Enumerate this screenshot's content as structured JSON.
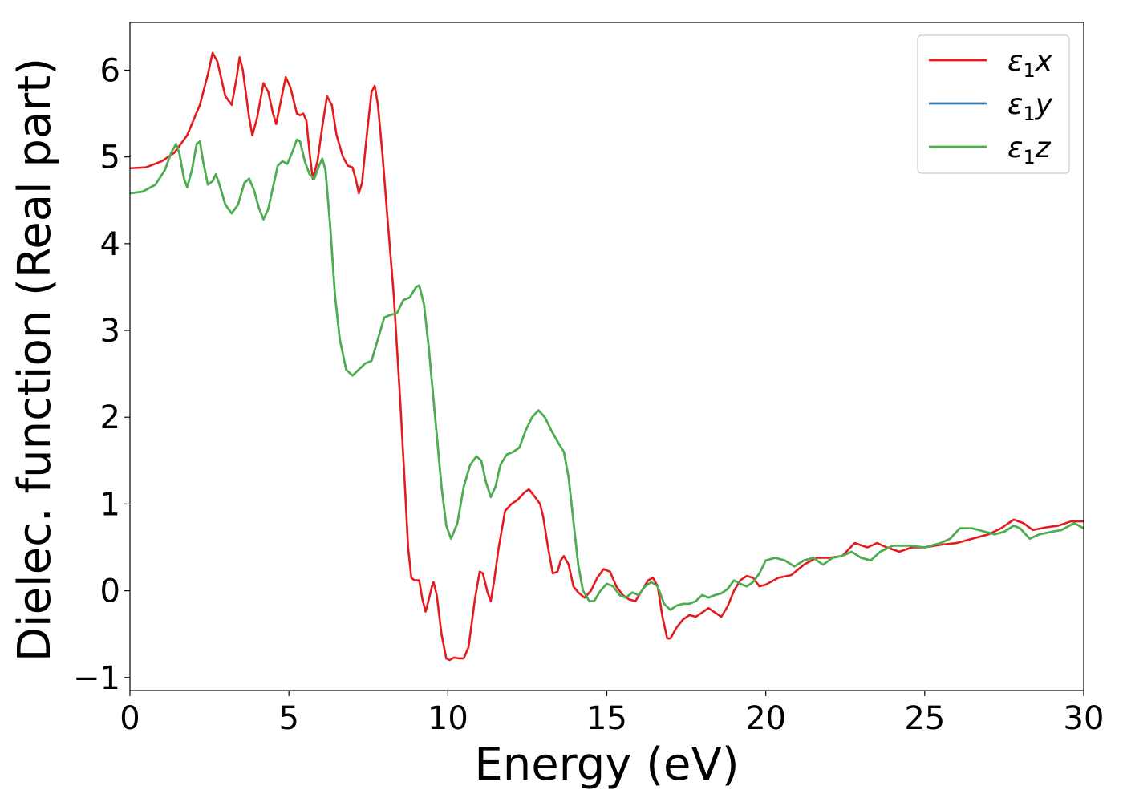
{
  "chart_data": {
    "type": "line",
    "title": "",
    "xlabel": "Energy (eV)",
    "ylabel": "Dielec. function (Real part)",
    "xlim": [
      0,
      30
    ],
    "ylim": [
      -1.15,
      6.55
    ],
    "xticks": [
      0,
      5,
      10,
      15,
      20,
      25,
      30
    ],
    "yticks": [
      -1,
      0,
      1,
      2,
      3,
      4,
      5,
      6
    ],
    "xtick_labels": [
      "0",
      "5",
      "10",
      "15",
      "20",
      "25",
      "30"
    ],
    "ytick_labels": [
      "−1",
      "0",
      "1",
      "2",
      "3",
      "4",
      "5",
      "6"
    ],
    "grid": false,
    "legend_position": "top-right",
    "series": [
      {
        "name": "ε₁x",
        "legend_base": "ε",
        "legend_sub": "1",
        "legend_var": "x",
        "color": "#e41a1c",
        "points": [
          [
            0,
            4.87
          ],
          [
            0.5,
            4.88
          ],
          [
            1.0,
            4.95
          ],
          [
            1.4,
            5.05
          ],
          [
            1.8,
            5.25
          ],
          [
            2.2,
            5.6
          ],
          [
            2.45,
            5.95
          ],
          [
            2.6,
            6.2
          ],
          [
            2.75,
            6.1
          ],
          [
            3.0,
            5.7
          ],
          [
            3.2,
            5.6
          ],
          [
            3.35,
            5.9
          ],
          [
            3.45,
            6.15
          ],
          [
            3.55,
            6.0
          ],
          [
            3.75,
            5.45
          ],
          [
            3.85,
            5.25
          ],
          [
            4.0,
            5.45
          ],
          [
            4.2,
            5.85
          ],
          [
            4.35,
            5.75
          ],
          [
            4.5,
            5.5
          ],
          [
            4.6,
            5.38
          ],
          [
            4.75,
            5.65
          ],
          [
            4.9,
            5.92
          ],
          [
            5.05,
            5.8
          ],
          [
            5.25,
            5.5
          ],
          [
            5.35,
            5.48
          ],
          [
            5.45,
            5.5
          ],
          [
            5.55,
            5.42
          ],
          [
            5.65,
            5.05
          ],
          [
            5.75,
            4.75
          ],
          [
            5.9,
            4.95
          ],
          [
            6.05,
            5.35
          ],
          [
            6.2,
            5.7
          ],
          [
            6.35,
            5.6
          ],
          [
            6.5,
            5.25
          ],
          [
            6.7,
            5.0
          ],
          [
            6.85,
            4.9
          ],
          [
            7.0,
            4.88
          ],
          [
            7.1,
            4.75
          ],
          [
            7.2,
            4.58
          ],
          [
            7.3,
            4.7
          ],
          [
            7.45,
            5.25
          ],
          [
            7.6,
            5.75
          ],
          [
            7.7,
            5.82
          ],
          [
            7.8,
            5.6
          ],
          [
            7.95,
            5.0
          ],
          [
            8.1,
            4.3
          ],
          [
            8.3,
            3.4
          ],
          [
            8.5,
            2.2
          ],
          [
            8.65,
            1.2
          ],
          [
            8.75,
            0.5
          ],
          [
            8.85,
            0.15
          ],
          [
            8.95,
            0.12
          ],
          [
            9.1,
            0.12
          ],
          [
            9.2,
            -0.1
          ],
          [
            9.3,
            -0.24
          ],
          [
            9.4,
            -0.1
          ],
          [
            9.5,
            0.05
          ],
          [
            9.55,
            0.1
          ],
          [
            9.65,
            -0.05
          ],
          [
            9.8,
            -0.5
          ],
          [
            9.95,
            -0.78
          ],
          [
            10.05,
            -0.8
          ],
          [
            10.2,
            -0.77
          ],
          [
            10.35,
            -0.78
          ],
          [
            10.5,
            -0.78
          ],
          [
            10.65,
            -0.65
          ],
          [
            10.85,
            -0.1
          ],
          [
            11.0,
            0.22
          ],
          [
            11.1,
            0.2
          ],
          [
            11.25,
            -0.02
          ],
          [
            11.35,
            -0.12
          ],
          [
            11.45,
            0.1
          ],
          [
            11.6,
            0.5
          ],
          [
            11.8,
            0.92
          ],
          [
            12.0,
            1.0
          ],
          [
            12.2,
            1.05
          ],
          [
            12.4,
            1.13
          ],
          [
            12.55,
            1.17
          ],
          [
            12.7,
            1.1
          ],
          [
            12.9,
            1.0
          ],
          [
            13.0,
            0.85
          ],
          [
            13.15,
            0.5
          ],
          [
            13.3,
            0.2
          ],
          [
            13.45,
            0.22
          ],
          [
            13.55,
            0.35
          ],
          [
            13.65,
            0.4
          ],
          [
            13.8,
            0.3
          ],
          [
            13.95,
            0.05
          ],
          [
            14.1,
            -0.02
          ],
          [
            14.3,
            -0.08
          ],
          [
            14.5,
            0.0
          ],
          [
            14.7,
            0.15
          ],
          [
            14.9,
            0.25
          ],
          [
            15.1,
            0.22
          ],
          [
            15.3,
            0.05
          ],
          [
            15.5,
            -0.05
          ],
          [
            15.7,
            -0.1
          ],
          [
            15.9,
            -0.12
          ],
          [
            16.1,
            0.0
          ],
          [
            16.3,
            0.12
          ],
          [
            16.45,
            0.15
          ],
          [
            16.6,
            0.05
          ],
          [
            16.75,
            -0.3
          ],
          [
            16.9,
            -0.55
          ],
          [
            17.0,
            -0.55
          ],
          [
            17.2,
            -0.42
          ],
          [
            17.4,
            -0.33
          ],
          [
            17.6,
            -0.28
          ],
          [
            17.8,
            -0.3
          ],
          [
            18.0,
            -0.25
          ],
          [
            18.2,
            -0.2
          ],
          [
            18.4,
            -0.25
          ],
          [
            18.6,
            -0.3
          ],
          [
            18.8,
            -0.18
          ],
          [
            19.0,
            0.0
          ],
          [
            19.2,
            0.12
          ],
          [
            19.4,
            0.17
          ],
          [
            19.6,
            0.15
          ],
          [
            19.8,
            0.05
          ],
          [
            20.0,
            0.07
          ],
          [
            20.4,
            0.15
          ],
          [
            20.8,
            0.18
          ],
          [
            21.2,
            0.3
          ],
          [
            21.6,
            0.38
          ],
          [
            22.0,
            0.38
          ],
          [
            22.4,
            0.4
          ],
          [
            22.8,
            0.55
          ],
          [
            23.2,
            0.5
          ],
          [
            23.5,
            0.55
          ],
          [
            23.8,
            0.5
          ],
          [
            24.2,
            0.45
          ],
          [
            24.6,
            0.5
          ],
          [
            25.0,
            0.5
          ],
          [
            25.5,
            0.53
          ],
          [
            26.0,
            0.55
          ],
          [
            26.5,
            0.6
          ],
          [
            27.0,
            0.65
          ],
          [
            27.4,
            0.72
          ],
          [
            27.8,
            0.82
          ],
          [
            28.1,
            0.78
          ],
          [
            28.4,
            0.7
          ],
          [
            28.8,
            0.73
          ],
          [
            29.2,
            0.75
          ],
          [
            29.6,
            0.8
          ],
          [
            30.0,
            0.8
          ]
        ]
      },
      {
        "name": "ε₁y",
        "legend_base": "ε",
        "legend_sub": "1",
        "legend_var": "y",
        "color": "#377eb8",
        "points": [
          [
            0,
            4.58
          ],
          [
            0.4,
            4.6
          ],
          [
            0.8,
            4.68
          ],
          [
            1.1,
            4.85
          ],
          [
            1.3,
            5.05
          ],
          [
            1.45,
            5.15
          ],
          [
            1.55,
            5.05
          ],
          [
            1.7,
            4.75
          ],
          [
            1.8,
            4.65
          ],
          [
            1.95,
            4.85
          ],
          [
            2.1,
            5.15
          ],
          [
            2.2,
            5.18
          ],
          [
            2.3,
            4.95
          ],
          [
            2.45,
            4.68
          ],
          [
            2.6,
            4.72
          ],
          [
            2.7,
            4.8
          ],
          [
            2.8,
            4.7
          ],
          [
            3.0,
            4.45
          ],
          [
            3.2,
            4.35
          ],
          [
            3.4,
            4.45
          ],
          [
            3.6,
            4.7
          ],
          [
            3.75,
            4.75
          ],
          [
            3.9,
            4.62
          ],
          [
            4.05,
            4.42
          ],
          [
            4.2,
            4.28
          ],
          [
            4.35,
            4.4
          ],
          [
            4.5,
            4.65
          ],
          [
            4.65,
            4.9
          ],
          [
            4.8,
            4.95
          ],
          [
            4.95,
            4.92
          ],
          [
            5.1,
            5.05
          ],
          [
            5.25,
            5.2
          ],
          [
            5.35,
            5.18
          ],
          [
            5.5,
            4.95
          ],
          [
            5.65,
            4.8
          ],
          [
            5.8,
            4.75
          ],
          [
            5.95,
            4.9
          ],
          [
            6.05,
            4.98
          ],
          [
            6.15,
            4.85
          ],
          [
            6.3,
            4.2
          ],
          [
            6.45,
            3.4
          ],
          [
            6.6,
            2.9
          ],
          [
            6.8,
            2.55
          ],
          [
            7.0,
            2.48
          ],
          [
            7.2,
            2.55
          ],
          [
            7.4,
            2.62
          ],
          [
            7.6,
            2.65
          ],
          [
            7.8,
            2.9
          ],
          [
            8.0,
            3.15
          ],
          [
            8.2,
            3.18
          ],
          [
            8.4,
            3.2
          ],
          [
            8.6,
            3.35
          ],
          [
            8.8,
            3.38
          ],
          [
            9.0,
            3.5
          ],
          [
            9.1,
            3.52
          ],
          [
            9.25,
            3.3
          ],
          [
            9.4,
            2.8
          ],
          [
            9.6,
            2.0
          ],
          [
            9.8,
            1.2
          ],
          [
            9.95,
            0.75
          ],
          [
            10.1,
            0.6
          ],
          [
            10.3,
            0.78
          ],
          [
            10.5,
            1.2
          ],
          [
            10.7,
            1.45
          ],
          [
            10.9,
            1.55
          ],
          [
            11.05,
            1.5
          ],
          [
            11.2,
            1.25
          ],
          [
            11.35,
            1.08
          ],
          [
            11.5,
            1.2
          ],
          [
            11.65,
            1.45
          ],
          [
            11.85,
            1.57
          ],
          [
            12.05,
            1.6
          ],
          [
            12.25,
            1.65
          ],
          [
            12.45,
            1.85
          ],
          [
            12.65,
            2.0
          ],
          [
            12.85,
            2.08
          ],
          [
            13.05,
            2.0
          ],
          [
            13.25,
            1.85
          ],
          [
            13.45,
            1.72
          ],
          [
            13.65,
            1.6
          ],
          [
            13.8,
            1.3
          ],
          [
            13.95,
            0.8
          ],
          [
            14.1,
            0.3
          ],
          [
            14.25,
            0.0
          ],
          [
            14.45,
            -0.12
          ],
          [
            14.6,
            -0.12
          ],
          [
            14.8,
            0.0
          ],
          [
            15.0,
            0.08
          ],
          [
            15.2,
            0.05
          ],
          [
            15.4,
            -0.05
          ],
          [
            15.6,
            -0.08
          ],
          [
            15.8,
            -0.02
          ],
          [
            16.0,
            -0.05
          ],
          [
            16.2,
            0.05
          ],
          [
            16.4,
            0.1
          ],
          [
            16.6,
            0.05
          ],
          [
            16.8,
            -0.15
          ],
          [
            17.0,
            -0.22
          ],
          [
            17.2,
            -0.17
          ],
          [
            17.4,
            -0.15
          ],
          [
            17.6,
            -0.15
          ],
          [
            17.8,
            -0.12
          ],
          [
            18.0,
            -0.05
          ],
          [
            18.2,
            -0.08
          ],
          [
            18.4,
            -0.05
          ],
          [
            18.6,
            -0.03
          ],
          [
            18.8,
            0.02
          ],
          [
            19.0,
            0.12
          ],
          [
            19.2,
            0.08
          ],
          [
            19.4,
            0.05
          ],
          [
            19.6,
            0.1
          ],
          [
            19.8,
            0.2
          ],
          [
            20.0,
            0.35
          ],
          [
            20.3,
            0.38
          ],
          [
            20.6,
            0.35
          ],
          [
            20.9,
            0.28
          ],
          [
            21.2,
            0.35
          ],
          [
            21.5,
            0.38
          ],
          [
            21.8,
            0.3
          ],
          [
            22.1,
            0.38
          ],
          [
            22.4,
            0.4
          ],
          [
            22.7,
            0.45
          ],
          [
            23.0,
            0.38
          ],
          [
            23.3,
            0.35
          ],
          [
            23.6,
            0.45
          ],
          [
            24.0,
            0.52
          ],
          [
            24.5,
            0.52
          ],
          [
            25.0,
            0.5
          ],
          [
            25.5,
            0.55
          ],
          [
            25.8,
            0.6
          ],
          [
            26.1,
            0.72
          ],
          [
            26.5,
            0.72
          ],
          [
            26.9,
            0.68
          ],
          [
            27.2,
            0.65
          ],
          [
            27.5,
            0.68
          ],
          [
            27.8,
            0.75
          ],
          [
            28.0,
            0.72
          ],
          [
            28.3,
            0.6
          ],
          [
            28.6,
            0.65
          ],
          [
            29.0,
            0.68
          ],
          [
            29.3,
            0.7
          ],
          [
            29.7,
            0.78
          ],
          [
            30.0,
            0.72
          ]
        ]
      },
      {
        "name": "ε₁z",
        "legend_base": "ε",
        "legend_sub": "1",
        "legend_var": "z",
        "color": "#4daf4a",
        "same_as": "ε₁y"
      }
    ]
  }
}
